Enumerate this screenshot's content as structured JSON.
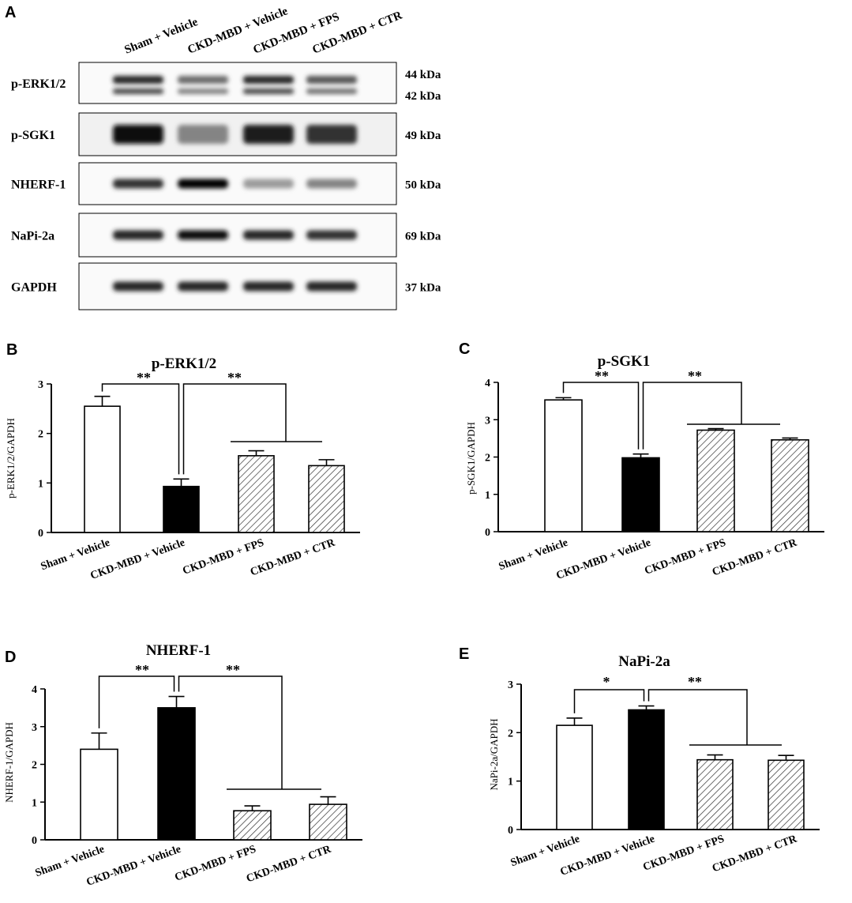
{
  "panel_labels": {
    "A": "A",
    "B": "B",
    "C": "C",
    "D": "D",
    "E": "E"
  },
  "blot": {
    "lanes": [
      "Sham + Vehicle",
      "CKD-MBD + Vehicle",
      "CKD-MBD + FPS",
      "CKD-MBD + CTR"
    ],
    "rows": [
      {
        "label": "p-ERK1/2",
        "kda": [
          "44 kDa",
          "42 kDa"
        ],
        "intensity": [
          0.85,
          0.55,
          0.85,
          0.65
        ],
        "double": true
      },
      {
        "label": "p-SGK1",
        "kda": [
          "49 kDa"
        ],
        "intensity": [
          0.95,
          0.45,
          0.9,
          0.8
        ],
        "double": false
      },
      {
        "label": "NHERF-1",
        "kda": [
          "50 kDa"
        ],
        "intensity": [
          0.8,
          1.0,
          0.35,
          0.45
        ],
        "double": false
      },
      {
        "label": "NaPi-2a",
        "kda": [
          "69 kDa"
        ],
        "intensity": [
          0.85,
          0.95,
          0.85,
          0.8
        ],
        "double": false
      },
      {
        "label": "GAPDH",
        "kda": [
          "37 kDa"
        ],
        "intensity": [
          0.85,
          0.85,
          0.85,
          0.85
        ],
        "double": false
      }
    ]
  },
  "chart_data": [
    {
      "panel": "B",
      "type": "bar",
      "title": "p-ERK1/2",
      "ylabel": "p-ERK1/2/GAPDH",
      "categories": [
        "Sham + Vehicle",
        "CKD-MBD + Vehicle",
        "CKD-MBD + FPS",
        "CKD-MBD + CTR"
      ],
      "values": [
        2.55,
        0.93,
        1.55,
        1.35
      ],
      "errors": [
        0.2,
        0.15,
        0.1,
        0.12
      ],
      "ylim": [
        0,
        3
      ],
      "yticks": [
        "0",
        "1",
        "2",
        "3"
      ],
      "fills": [
        "white",
        "black",
        "hatch",
        "hatch"
      ],
      "sig": [
        "**",
        "**"
      ]
    },
    {
      "panel": "C",
      "type": "bar",
      "title": "p-SGK1",
      "ylabel": "p-SGK1/GAPDH",
      "categories": [
        "Sham + Vehicle",
        "CKD-MBD + Vehicle",
        "CKD-MBD + FPS",
        "CKD-MBD + CTR"
      ],
      "values": [
        3.53,
        1.98,
        2.72,
        2.46
      ],
      "errors": [
        0.06,
        0.1,
        0.04,
        0.05
      ],
      "ylim": [
        0,
        4
      ],
      "yticks": [
        "0",
        "1",
        "2",
        "3",
        "4"
      ],
      "fills": [
        "white",
        "black",
        "hatch",
        "hatch"
      ],
      "sig": [
        "**",
        "**"
      ]
    },
    {
      "panel": "D",
      "type": "bar",
      "title": "NHERF-1",
      "ylabel": "NHERF-1/GAPDH",
      "categories": [
        "Sham + Vehicle",
        "CKD-MBD + Vehicle",
        "CKD-MBD + FPS",
        "CKD-MBD + CTR"
      ],
      "values": [
        2.4,
        3.5,
        0.77,
        0.94
      ],
      "errors": [
        0.43,
        0.3,
        0.13,
        0.2
      ],
      "ylim": [
        0,
        4
      ],
      "yticks": [
        "0",
        "1",
        "2",
        "3",
        "4"
      ],
      "fills": [
        "white",
        "black",
        "hatch",
        "hatch"
      ],
      "sig": [
        "**",
        "**"
      ]
    },
    {
      "panel": "E",
      "type": "bar",
      "title": "NaPi-2a",
      "ylabel": "NaPi-2a/GAPDH",
      "categories": [
        "Sham + Vehicle",
        "CKD-MBD + Vehicle",
        "CKD-MBD + FPS",
        "CKD-MBD + CTR"
      ],
      "values": [
        2.15,
        2.47,
        1.44,
        1.43
      ],
      "errors": [
        0.15,
        0.08,
        0.1,
        0.1
      ],
      "ylim": [
        0,
        3
      ],
      "yticks": [
        "0",
        "1",
        "2",
        "3"
      ],
      "fills": [
        "white",
        "black",
        "hatch",
        "hatch"
      ],
      "sig": [
        "*",
        "**"
      ]
    }
  ]
}
